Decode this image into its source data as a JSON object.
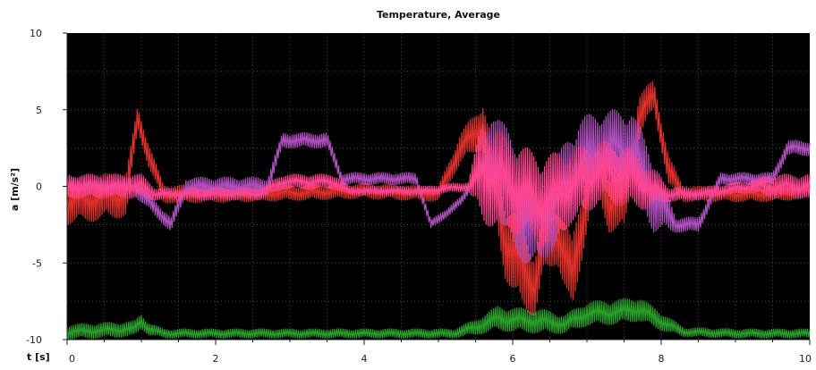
{
  "chart_data": {
    "type": "line",
    "title": "Temperature, Average",
    "xlabel": "t [s]",
    "ylabel": "a [m/s²]",
    "xlim": [
      0,
      10
    ],
    "ylim": [
      -10,
      10
    ],
    "xticks": [
      0,
      2,
      4,
      6,
      8,
      10
    ],
    "yticks": [
      10,
      5,
      0,
      -5,
      -10
    ],
    "grid": true,
    "background": "#000000",
    "series": [
      {
        "color": "#e0302a",
        "x": [
          0,
          0.8,
          0.95,
          1.1,
          1.3,
          2.5,
          4.0,
          5.0,
          5.3,
          5.6,
          5.9,
          6.1,
          6.3,
          6.4,
          6.6,
          6.8,
          7.1,
          7.3,
          7.5,
          7.7,
          7.9,
          8.1,
          8.3,
          8.8,
          9.5,
          10
        ],
        "y": [
          -1.0,
          -0.5,
          4.5,
          2.0,
          -0.5,
          -0.5,
          -0.3,
          -0.5,
          2.5,
          4.0,
          -3.5,
          -5.0,
          -6.5,
          -4.0,
          -3.0,
          -6.0,
          2.0,
          -1.0,
          -1.0,
          4.5,
          6.0,
          1.0,
          -0.5,
          -0.5,
          -0.5,
          -0.3
        ],
        "amplitude": [
          1.5,
          1.5,
          0.8,
          0.8,
          0.6,
          0.5,
          0.5,
          0.5,
          1.0,
          1.5,
          2.5,
          3.0,
          2.0,
          2.0,
          2.0,
          2.5,
          2.0,
          2.0,
          2.0,
          1.5,
          1.0,
          1.0,
          0.5,
          0.5,
          0.5,
          0.5
        ]
      },
      {
        "color": "#b050c0",
        "x": [
          0,
          0.9,
          1.2,
          1.4,
          1.6,
          2.7,
          2.9,
          3.5,
          3.7,
          4.7,
          4.9,
          5.3,
          5.5,
          5.8,
          6.0,
          6.3,
          6.6,
          6.9,
          7.2,
          7.6,
          7.9,
          8.2,
          8.5,
          8.8,
          9.5,
          9.7,
          10
        ],
        "y": [
          0,
          0,
          -1.5,
          -2.5,
          0,
          0,
          3.0,
          3.0,
          0.5,
          0.5,
          -2.5,
          -1.0,
          0.5,
          2.0,
          -1.0,
          -2.5,
          -1.0,
          1.5,
          2.5,
          2.5,
          -0.5,
          -2.5,
          -2.5,
          0.5,
          0.5,
          2.5,
          2.5
        ],
        "amplitude": [
          0.6,
          0.6,
          0.5,
          0.5,
          0.6,
          0.6,
          0.5,
          0.5,
          0.4,
          0.4,
          0.3,
          0.3,
          0.3,
          4.0,
          3.5,
          3.0,
          3.0,
          3.0,
          2.5,
          2.5,
          2.5,
          0.5,
          0.5,
          0.4,
          0.4,
          0.5,
          0.5
        ]
      },
      {
        "color": "#ff4490",
        "x": [
          0,
          1.0,
          1.2,
          2.6,
          2.9,
          3.6,
          3.8,
          4.8,
          5.4,
          5.6,
          6.0,
          6.4,
          6.8,
          7.2,
          7.6,
          7.8,
          8.1,
          8.5,
          9.2,
          9.5,
          10
        ],
        "y": [
          0,
          0,
          -0.5,
          -0.5,
          0.3,
          0.3,
          -0.3,
          -0.3,
          0,
          1.0,
          0,
          -1.0,
          0,
          1.0,
          0.5,
          0,
          -0.5,
          -0.5,
          0,
          0,
          0
        ],
        "amplitude": [
          0.8,
          0.8,
          0.4,
          0.4,
          0.5,
          0.5,
          0.3,
          0.3,
          0.3,
          3.5,
          3.0,
          3.0,
          2.5,
          2.0,
          2.0,
          1.5,
          0.5,
          0.4,
          0.4,
          0.8,
          0.8
        ]
      },
      {
        "color": "#2aa02a",
        "x": [
          0,
          0.9,
          1.0,
          1.1,
          1.3,
          5.2,
          5.5,
          5.8,
          6.0,
          6.4,
          6.7,
          7.0,
          7.4,
          7.7,
          8.0,
          8.3,
          9.0,
          10
        ],
        "y": [
          -9.5,
          -9.3,
          -8.8,
          -9.3,
          -9.6,
          -9.6,
          -9.2,
          -8.6,
          -8.7,
          -8.8,
          -9.0,
          -8.3,
          -8.2,
          -8.0,
          -8.8,
          -9.5,
          -9.6,
          -9.6
        ],
        "amplitude": [
          0.5,
          0.5,
          0.5,
          0.4,
          0.3,
          0.3,
          0.5,
          0.8,
          0.8,
          0.8,
          0.6,
          0.8,
          0.8,
          0.8,
          0.6,
          0.3,
          0.3,
          0.3
        ]
      }
    ]
  }
}
